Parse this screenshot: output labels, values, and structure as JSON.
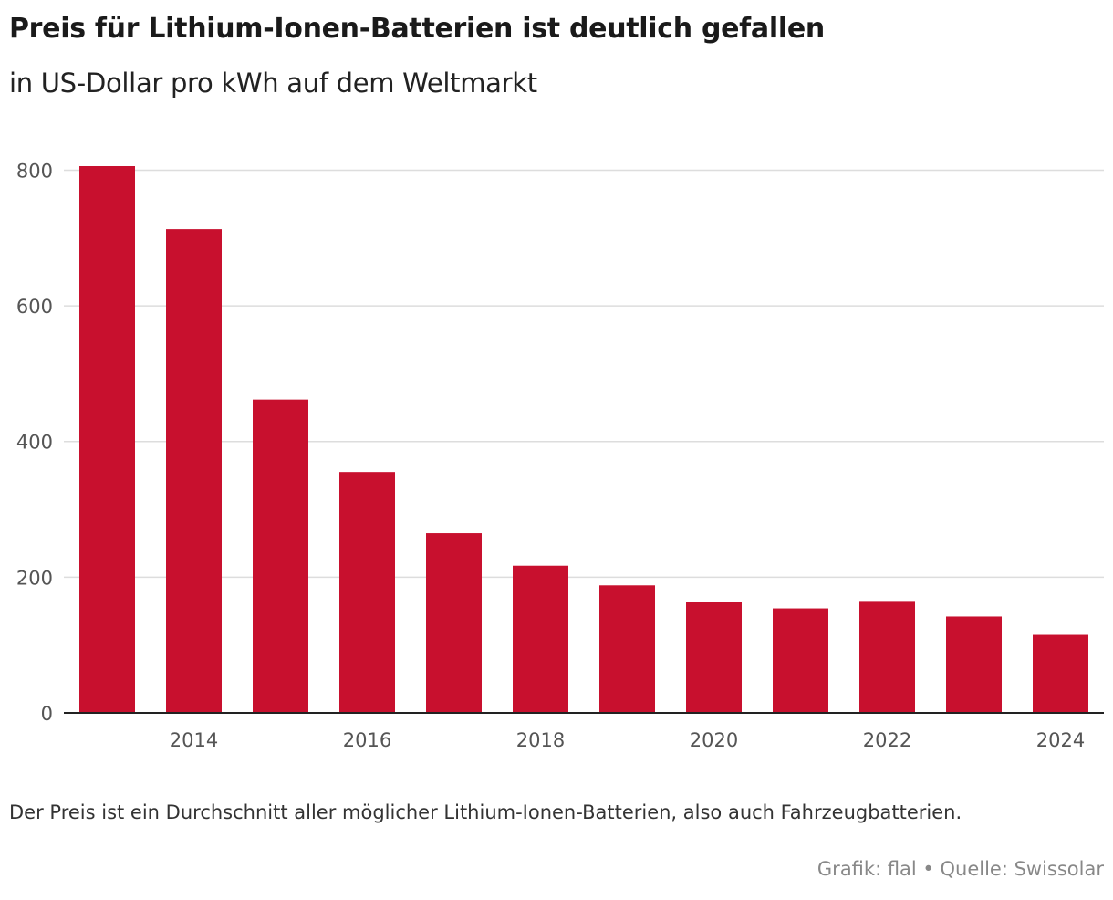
{
  "header": {
    "title": "Preis für Lithium-Ionen-Batterien ist deutlich gefallen",
    "subtitle": "in US-Dollar pro kWh auf dem Weltmarkt"
  },
  "footer": {
    "note": "Der Preis ist ein Durchschnitt aller möglicher Lithium-Ionen-Batterien, also auch Fahrzeugbatterien.",
    "source": "Grafik: flal • Quelle: Swissolar"
  },
  "colors": {
    "bar": "#c8102e",
    "grid": "#dddddd",
    "axis": "#222222"
  },
  "chart_data": {
    "type": "bar",
    "categories": [
      "2013",
      "2014",
      "2015",
      "2016",
      "2017",
      "2018",
      "2019",
      "2020",
      "2021",
      "2022",
      "2023",
      "2024"
    ],
    "values": [
      806,
      713,
      462,
      355,
      265,
      217,
      188,
      164,
      154,
      165,
      142,
      115
    ],
    "x_tick_labels": [
      "2014",
      "2016",
      "2018",
      "2020",
      "2022",
      "2024"
    ],
    "y_ticks": [
      0,
      200,
      400,
      600,
      800
    ],
    "ylim": [
      0,
      806
    ],
    "grid": true,
    "xlabel": "",
    "ylabel": ""
  }
}
